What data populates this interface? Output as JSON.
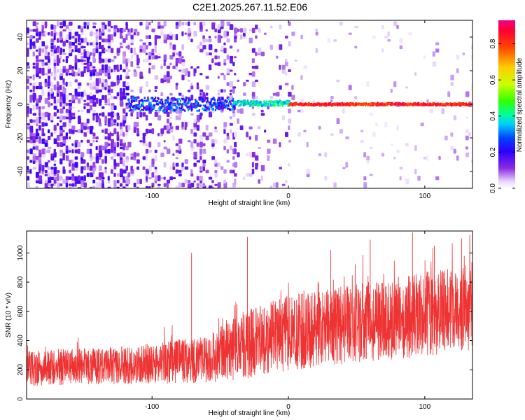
{
  "figure": {
    "title": "C2E1.2025.267.11.52.E06"
  },
  "chart_data": [
    {
      "type": "heatmap",
      "name": "spectrogram",
      "xlabel": "Height of straight line (km)",
      "ylabel": "Frequency (Hz)",
      "xlim": [
        -192,
        135
      ],
      "ylim": [
        -50,
        50
      ],
      "xticks": [
        -100,
        0,
        100
      ],
      "xtick_labels": [
        "-100",
        "0",
        "100"
      ],
      "yticks": [
        -40,
        -20,
        0,
        20,
        40
      ],
      "ytick_labels": [
        "-40",
        "-20",
        "0",
        "20",
        "40"
      ],
      "grid": false,
      "description_of_content": null,
      "zones": [
        {
          "x_range": [
            -192,
            -118
          ],
          "f_range": [
            -50,
            50
          ],
          "density": 0.5,
          "amplitude_range": [
            0.03,
            0.2
          ]
        },
        {
          "x_range": [
            -118,
            -40
          ],
          "f_range": [
            -50,
            50
          ],
          "density": 0.28,
          "amplitude_range": [
            0.03,
            0.17
          ]
        },
        {
          "x_range": [
            -40,
            0
          ],
          "f_range": [
            -50,
            50
          ],
          "density": 0.14,
          "amplitude_range": [
            0.03,
            0.15
          ]
        },
        {
          "x_range": [
            0,
            135
          ],
          "f_range": [
            -50,
            50
          ],
          "density": 0.04,
          "amplitude_range": [
            0.02,
            0.08
          ]
        }
      ],
      "line": [
        {
          "x_range": [
            -118,
            -40
          ],
          "f_center": 0,
          "f_spread": 4,
          "amplitude_range": [
            0.15,
            0.35
          ]
        },
        {
          "x_range": [
            -40,
            0
          ],
          "f_center": 0.5,
          "f_spread": 1.5,
          "amplitude_range": [
            0.3,
            0.45
          ]
        },
        {
          "x_range": [
            0,
            135
          ],
          "f_center": 0,
          "f_spread": 0.6,
          "amplitude_range": [
            0.75,
            0.9
          ]
        }
      ],
      "colorbar": {
        "label": "Normalized spectral amplitude",
        "range": [
          0,
          0.93
        ],
        "ticks": [
          0,
          0.2,
          0.4,
          0.6,
          0.8
        ],
        "tick_labels": [
          "0.0",
          "0.2",
          "0.4",
          "0.6",
          "0.8"
        ]
      }
    },
    {
      "type": "line",
      "name": "snr",
      "xlabel": "Height of straight line (km)",
      "ylabel": "SNR (10 * v/v)",
      "xlim": [
        -192,
        135
      ],
      "ylim": [
        0,
        1150
      ],
      "xticks": [
        -100,
        0,
        100
      ],
      "xtick_labels": [
        "-100",
        "0",
        "100"
      ],
      "yticks": [
        0,
        200,
        400,
        600,
        800,
        1000
      ],
      "ytick_labels": [
        "0",
        "200",
        "400",
        "600",
        "800",
        "1000"
      ],
      "grid": false,
      "color": "#ee3333",
      "trend": {
        "x": [
          -192,
          -120,
          -60,
          -30,
          0,
          50,
          100,
          135
        ],
        "center": [
          210,
          230,
          270,
          380,
          450,
          520,
          580,
          640
        ],
        "spread": [
          120,
          130,
          160,
          240,
          260,
          270,
          290,
          300
        ]
      },
      "peaks": [
        {
          "x": -71,
          "y": 1000
        },
        {
          "x": -30,
          "y": 1110
        },
        {
          "x": 31,
          "y": 1020
        },
        {
          "x": 60,
          "y": 1090
        },
        {
          "x": 91,
          "y": 1140
        },
        {
          "x": 107,
          "y": 1050
        },
        {
          "x": 127,
          "y": 1100
        }
      ]
    }
  ]
}
